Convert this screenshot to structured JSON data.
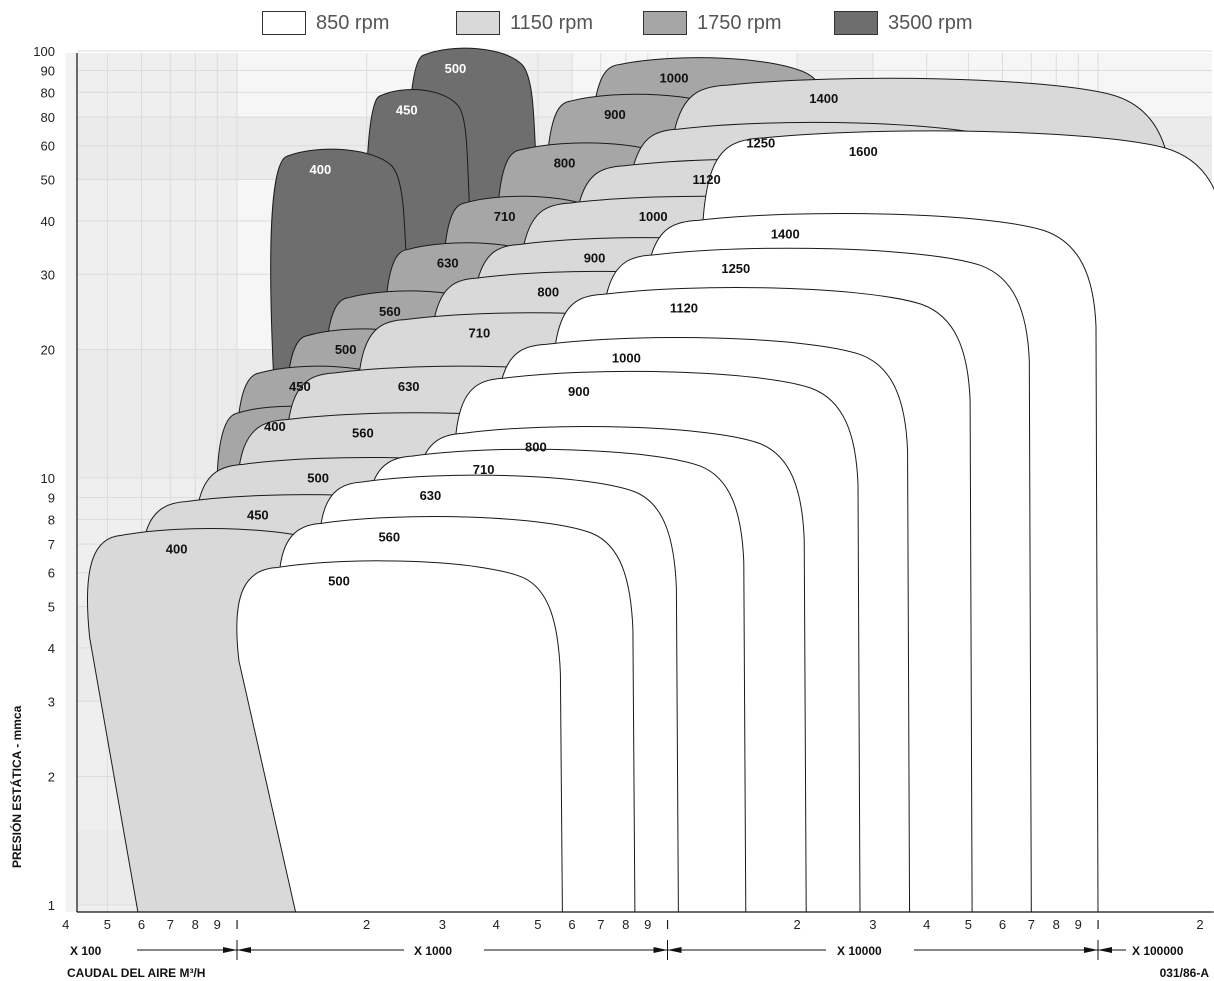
{
  "legend": [
    {
      "label": "850 rpm",
      "color": "#ffffff"
    },
    {
      "label": "1150 rpm",
      "color": "#d9d9d9"
    },
    {
      "label": "1750 rpm",
      "color": "#a6a6a6"
    },
    {
      "label": "3500 rpm",
      "color": "#6e6e6e"
    }
  ],
  "ylabel": "PRESIÓN ESTÁTICA  -  mmca",
  "xlabel": "CAUDAL DEL AIRE M³/H",
  "code": "031/86-A",
  "multipliers": [
    "X   100",
    "X   1000",
    "X   10000",
    "X   100000"
  ],
  "chart_data": {
    "type": "area",
    "xscale": "log",
    "yscale": "log",
    "xlim": [
      400,
      200000
    ],
    "ylim": [
      1,
      100
    ],
    "x_unit": "m³/h",
    "y_unit": "mmca",
    "x_tick_labels": [
      "4",
      "5",
      "6",
      "7",
      "8",
      "9",
      "I",
      "2",
      "3",
      "4",
      "5",
      "6",
      "7",
      "8",
      "9",
      "I",
      "2",
      "3",
      "4",
      "5",
      "6",
      "7",
      "8",
      "9",
      "I",
      "2"
    ],
    "y_tick_labels": [
      "100",
      "90",
      "80",
      "80",
      "60",
      "50",
      "40",
      "30",
      "20",
      "10",
      "9",
      "8",
      "7",
      "6",
      "5",
      "4",
      "3",
      "2",
      "1"
    ],
    "grid": true,
    "legend_position": "top",
    "series": [
      {
        "name": "850 rpm",
        "color": "#ffffff",
        "fans": [
          {
            "label": "500",
            "x": [
              1000,
              5700
            ],
            "max_pressure": 6.3
          },
          {
            "label": "560",
            "x": [
              1250,
              8400
            ],
            "max_pressure": 8.0
          },
          {
            "label": "630",
            "x": [
              1550,
              10600
            ],
            "max_pressure": 10.0
          },
          {
            "label": "710",
            "x": [
              2000,
              15200
            ],
            "max_pressure": 11.5
          },
          {
            "label": "800",
            "x": [
              2600,
              21000
            ],
            "max_pressure": 13.0
          },
          {
            "label": "900",
            "x": [
              3200,
              28000
            ],
            "max_pressure": 17.5
          },
          {
            "label": "1000",
            "x": [
              4000,
              36500
            ],
            "max_pressure": 21.0
          },
          {
            "label": "1120",
            "x": [
              5400,
              51000
            ],
            "max_pressure": 27.5
          },
          {
            "label": "1250",
            "x": [
              7000,
              70000
            ],
            "max_pressure": 34.0
          },
          {
            "label": "1400",
            "x": [
              8800,
              100000
            ],
            "max_pressure": 41.0
          },
          {
            "label": "1600",
            "x": [
              12000,
              200000
            ],
            "max_pressure": 64.0
          }
        ]
      },
      {
        "name": "1150 rpm",
        "color": "#d9d9d9",
        "fans": [
          {
            "label": "400",
            "x": [
              450,
              2000
            ],
            "max_pressure": 7.5
          },
          {
            "label": "450",
            "x": [
              600,
              4500
            ],
            "max_pressure": 9.0
          },
          {
            "label": "500",
            "x": [
              800,
              6800
            ],
            "max_pressure": 11.0
          },
          {
            "label": "560",
            "x": [
              1000,
              9000
            ],
            "max_pressure": 14.0
          },
          {
            "label": "630",
            "x": [
              1300,
              11000
            ],
            "max_pressure": 18.0
          },
          {
            "label": "710",
            "x": [
              1900,
              16000
            ],
            "max_pressure": 24.0
          },
          {
            "label": "800",
            "x": [
              2800,
              22000
            ],
            "max_pressure": 30.0
          },
          {
            "label": "900",
            "x": [
              3500,
              30000
            ],
            "max_pressure": 36.0
          },
          {
            "label": "1000",
            "x": [
              4500,
              45000
            ],
            "max_pressure": 45.0
          },
          {
            "label": "1120",
            "x": [
              6000,
              60000
            ],
            "max_pressure": 55.0
          },
          {
            "label": "1250",
            "x": [
              8000,
              80000
            ],
            "max_pressure": 67.0
          },
          {
            "label": "1400",
            "x": [
              10000,
              150000
            ],
            "max_pressure": 85.0
          }
        ]
      },
      {
        "name": "1750 rpm",
        "color": "#a6a6a6",
        "fans": [
          {
            "label": "400",
            "x": [
              900,
              2200
            ],
            "max_pressure": 14.5
          },
          {
            "label": "450",
            "x": [
              1000,
              2700
            ],
            "max_pressure": 18.0
          },
          {
            "label": "500",
            "x": [
              1300,
              3300
            ],
            "max_pressure": 22.0
          },
          {
            "label": "560",
            "x": [
              1600,
              4500
            ],
            "max_pressure": 27.0
          },
          {
            "label": "630",
            "x": [
              2200,
              6000
            ],
            "max_pressure": 35.0
          },
          {
            "label": "710",
            "x": [
              3000,
              8000
            ],
            "max_pressure": 45.0
          },
          {
            "label": "800",
            "x": [
              4000,
              12000
            ],
            "max_pressure": 60.0
          },
          {
            "label": "900",
            "x": [
              5200,
              16000
            ],
            "max_pressure": 78.0
          },
          {
            "label": "1000",
            "x": [
              6600,
              25000
            ],
            "max_pressure": 95.0
          }
        ]
      },
      {
        "name": "3500 rpm",
        "color": "#6e6e6e",
        "fans": [
          {
            "label": "400",
            "x": [
              1200,
              2500
            ],
            "max_pressure": 58.0
          },
          {
            "label": "450",
            "x": [
              2000,
              3500
            ],
            "max_pressure": 80.0
          },
          {
            "label": "500",
            "x": [
              2500,
              5000
            ],
            "max_pressure": 100.0
          }
        ]
      }
    ]
  }
}
